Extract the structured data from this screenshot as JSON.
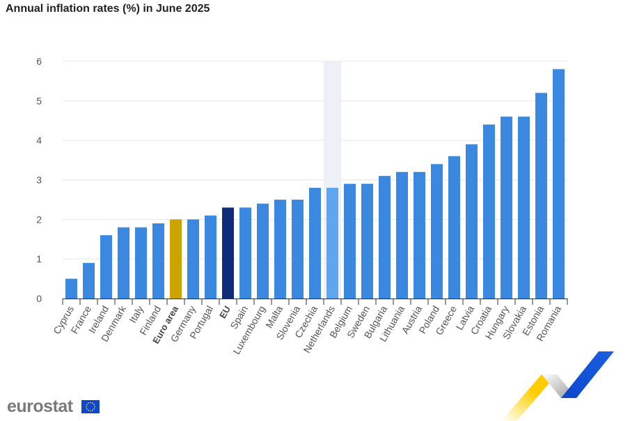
{
  "title": "Annual inflation rates (%) in June 2025",
  "brand": {
    "name": "eurostat",
    "flag_icon": "eu-flag-icon",
    "corner_graphic": "eurostat-swoosh-graphic"
  },
  "chart_data": {
    "type": "bar",
    "title": "Annual inflation rates (%) in June 2025",
    "xlabel": "",
    "ylabel": "",
    "ylim": [
      0,
      6
    ],
    "yticks": [
      0,
      1,
      2,
      3,
      4,
      5,
      6
    ],
    "grid": true,
    "categories": [
      "Cyprus",
      "France",
      "Ireland",
      "Denmark",
      "Italy",
      "Finland",
      "Euro area",
      "Germany",
      "Portugal",
      "EU",
      "Spain",
      "Luxembourg",
      "Malta",
      "Slovenia",
      "Czechia",
      "Netherlands",
      "Belgium",
      "Sweden",
      "Bulgaria",
      "Lithuania",
      "Austria",
      "Poland",
      "Greece",
      "Latvia",
      "Croatia",
      "Hungary",
      "Slovakia",
      "Estonia",
      "Romania"
    ],
    "values": [
      0.5,
      0.9,
      1.6,
      1.8,
      1.8,
      1.9,
      2.0,
      2.0,
      2.1,
      2.3,
      2.3,
      2.4,
      2.5,
      2.5,
      2.8,
      2.8,
      2.9,
      2.9,
      3.1,
      3.2,
      3.2,
      3.4,
      3.6,
      3.9,
      4.4,
      4.6,
      4.6,
      5.2,
      5.8
    ],
    "bold_categories": [
      "Euro area",
      "EU"
    ],
    "highlighted_category": "Netherlands",
    "colors": {
      "default": "#3a88e0",
      "euro_area": "#cca300",
      "eu": "#0e2c7a",
      "highlighted": "#5ea6ef",
      "hover_band": "#eef0f8",
      "grid": "#e6e6e6",
      "axis": "#333333",
      "tick_text": "#555555"
    }
  }
}
